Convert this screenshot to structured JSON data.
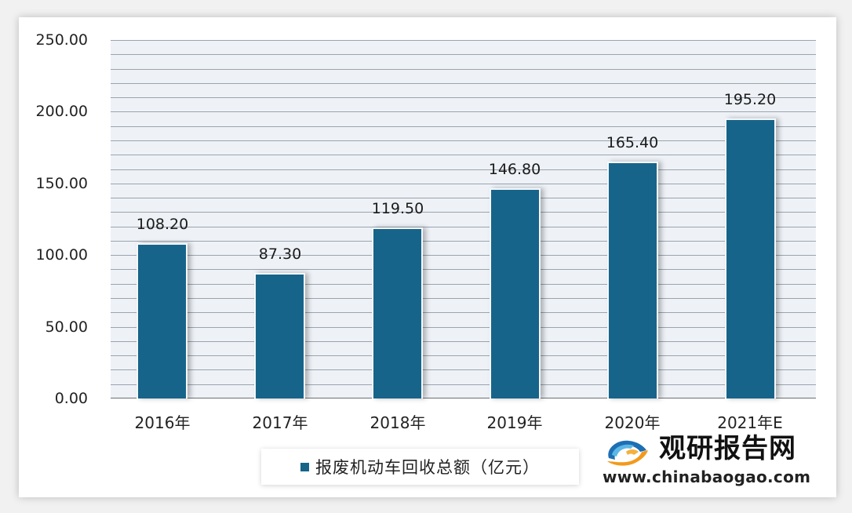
{
  "chart_data": {
    "type": "bar",
    "title": "",
    "xlabel": "",
    "ylabel": "",
    "categories": [
      "2016年",
      "2017年",
      "2018年",
      "2019年",
      "2020年",
      "2021年E"
    ],
    "series": [
      {
        "name": "报废机动车回收总额（亿元）",
        "values": [
          108.2,
          87.3,
          119.5,
          146.8,
          165.4,
          195.2
        ],
        "color": "#17648a"
      }
    ],
    "values": [
      108.2,
      87.3,
      119.5,
      146.8,
      165.4,
      195.2
    ],
    "value_labels": [
      "108.20",
      "87.30",
      "119.50",
      "146.80",
      "165.40",
      "195.20"
    ],
    "ylim": [
      0,
      250
    ],
    "yticks": [
      "0.00",
      "50.00",
      "100.00",
      "150.00",
      "200.00",
      "250.00"
    ],
    "minor_grid_step": 10,
    "grid": true,
    "legend_position": "bottom"
  },
  "legend": {
    "label": "报废机动车回收总额（亿元）",
    "color": "#17648a"
  },
  "watermark": {
    "icon": "chinabaogao-logo-icon",
    "title": "观研报告网",
    "url": "www.chinabaogao.com"
  }
}
